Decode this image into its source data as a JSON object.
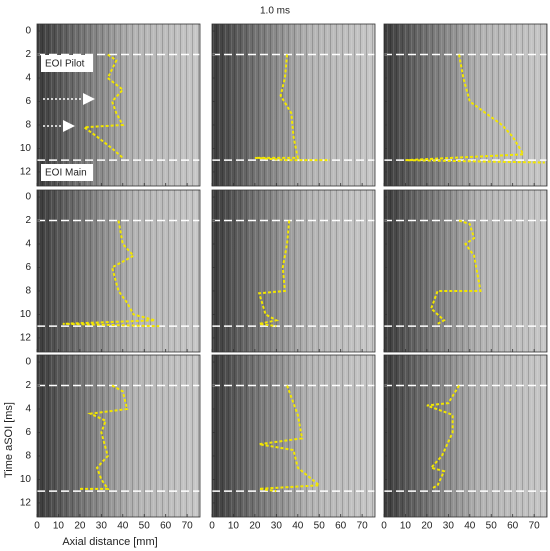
{
  "figure": {
    "title": "1.0 ms",
    "xlabel": "Axial distance [mm]",
    "ylabel": "Time aSOI [ms]",
    "annotations": [
      "EOI Pilot",
      "EOI Main"
    ]
  },
  "chart_data": [
    {
      "type": "line",
      "xlim": [
        0,
        76
      ],
      "ylim": [
        -0.6,
        13.2
      ],
      "xticks": [
        0,
        10,
        20,
        30,
        40,
        50,
        60,
        70
      ],
      "yticks": [
        0,
        2,
        4,
        6,
        8,
        10,
        12
      ],
      "hlines": [
        2,
        11
      ],
      "series": [
        {
          "color": "#f2e600",
          "x": [
            33,
            37,
            33,
            40,
            35,
            37,
            40,
            22,
            28,
            35,
            40
          ],
          "y": [
            2,
            2.5,
            4,
            5,
            6,
            7,
            8,
            8.2,
            9,
            10,
            10.8
          ]
        }
      ]
    },
    {
      "type": "line",
      "xlim": [
        0,
        76
      ],
      "ylim": [
        -0.6,
        13.2
      ],
      "xticks": [
        0,
        10,
        20,
        30,
        40,
        50,
        60,
        70
      ],
      "yticks": [
        0,
        2,
        4,
        6,
        8,
        10,
        12
      ],
      "hlines": [
        2,
        11
      ],
      "series": [
        {
          "color": "#f2e600",
          "x": [
            35,
            34,
            32,
            37,
            38,
            40,
            20,
            35,
            55
          ],
          "y": [
            2,
            4,
            5.5,
            7,
            9,
            10.8,
            10.8,
            11,
            11
          ]
        }
      ]
    },
    {
      "type": "line",
      "xlim": [
        0,
        76
      ],
      "ylim": [
        -0.6,
        13.2
      ],
      "xticks": [
        0,
        10,
        20,
        30,
        40,
        50,
        60,
        70
      ],
      "yticks": [
        0,
        2,
        4,
        6,
        8,
        10,
        12
      ],
      "hlines": [
        2,
        11
      ],
      "series": [
        {
          "color": "#f2e600",
          "x": [
            35,
            37,
            40,
            55,
            60,
            65,
            10,
            75
          ],
          "y": [
            2,
            4,
            6,
            8,
            9,
            10.5,
            11,
            11.2
          ]
        }
      ]
    },
    {
      "type": "line",
      "xlim": [
        0,
        76
      ],
      "ylim": [
        -0.6,
        13.2
      ],
      "xticks": [
        0,
        10,
        20,
        30,
        40,
        50,
        60,
        70
      ],
      "yticks": [
        0,
        2,
        4,
        6,
        8,
        10,
        12
      ],
      "hlines": [
        2,
        11
      ],
      "series": [
        {
          "color": "#f2e600",
          "x": [
            38,
            40,
            45,
            35,
            38,
            42,
            45,
            55,
            12,
            57
          ],
          "y": [
            2,
            4,
            5,
            6,
            8,
            9,
            10,
            10.5,
            10.8,
            11
          ]
        }
      ]
    },
    {
      "type": "line",
      "xlim": [
        0,
        76
      ],
      "ylim": [
        -0.6,
        13.2
      ],
      "xticks": [
        0,
        10,
        20,
        30,
        40,
        50,
        60,
        70
      ],
      "yticks": [
        0,
        2,
        4,
        6,
        8,
        10,
        12
      ],
      "hlines": [
        2,
        11
      ],
      "series": [
        {
          "color": "#f2e600",
          "x": [
            36,
            35,
            33,
            34,
            22,
            25,
            30,
            22,
            30
          ],
          "y": [
            2,
            4,
            6,
            8,
            8.2,
            10,
            10.5,
            10.8,
            11
          ]
        }
      ]
    },
    {
      "type": "line",
      "xlim": [
        0,
        76
      ],
      "ylim": [
        -0.6,
        13.2
      ],
      "xticks": [
        0,
        10,
        20,
        30,
        40,
        50,
        60,
        70
      ],
      "yticks": [
        0,
        2,
        4,
        6,
        8,
        10,
        12
      ],
      "hlines": [
        2,
        11
      ],
      "series": [
        {
          "color": "#f2e600",
          "x": [
            35,
            40,
            42,
            38,
            42,
            45,
            25,
            22,
            28,
            25
          ],
          "y": [
            2,
            2.3,
            3.5,
            4,
            5,
            8,
            8,
            9.5,
            10.5,
            10.8
          ]
        }
      ]
    },
    {
      "type": "line",
      "xlim": [
        0,
        76
      ],
      "ylim": [
        -0.6,
        13.2
      ],
      "xticks": [
        0,
        10,
        20,
        30,
        40,
        50,
        60,
        70
      ],
      "yticks": [
        0,
        2,
        4,
        6,
        8,
        10,
        12
      ],
      "hlines": [
        2,
        11
      ],
      "series": [
        {
          "color": "#f2e600",
          "x": [
            35,
            40,
            42,
            25,
            32,
            30,
            33,
            28,
            30,
            33,
            20
          ],
          "y": [
            2,
            2.5,
            4,
            4.4,
            5,
            6,
            8,
            9,
            10,
            10.8,
            10.8
          ]
        }
      ]
    },
    {
      "type": "line",
      "xlim": [
        0,
        76
      ],
      "ylim": [
        -0.6,
        13.2
      ],
      "xticks": [
        0,
        10,
        20,
        30,
        40,
        50,
        60,
        70
      ],
      "yticks": [
        0,
        2,
        4,
        6,
        8,
        10,
        12
      ],
      "hlines": [
        2,
        11
      ],
      "series": [
        {
          "color": "#f2e600",
          "x": [
            35,
            37,
            40,
            42,
            22,
            38,
            40,
            50,
            22,
            30
          ],
          "y": [
            2,
            3,
            4.5,
            6.5,
            7,
            7.5,
            9,
            10.5,
            10.8,
            11
          ]
        }
      ]
    },
    {
      "type": "line",
      "xlim": [
        0,
        76
      ],
      "ylim": [
        -0.6,
        13.2
      ],
      "xticks": [
        0,
        10,
        20,
        30,
        40,
        50,
        60,
        70
      ],
      "yticks": [
        0,
        2,
        4,
        6,
        8,
        10,
        12
      ],
      "hlines": [
        2,
        11
      ],
      "series": [
        {
          "color": "#f2e600",
          "x": [
            35,
            30,
            20,
            32,
            32,
            27,
            22,
            28,
            25,
            22
          ],
          "y": [
            2,
            3.5,
            3.7,
            4.5,
            6,
            8,
            9,
            9.3,
            10.5,
            10.8
          ]
        }
      ]
    }
  ]
}
